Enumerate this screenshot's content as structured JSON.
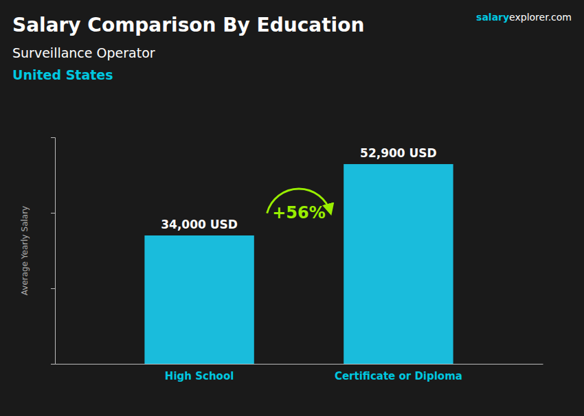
{
  "chart_data": {
    "type": "bar",
    "title": "Salary Comparison By Education",
    "subtitle": "Surveillance Operator",
    "y_label": "Average Yearly Salary",
    "categories": [
      "High School",
      "Certificate or Diploma"
    ],
    "values": [
      34000,
      52900
    ],
    "value_labels": [
      "34,000 USD",
      "52,900 USD"
    ],
    "data_labels": true,
    "color": "#1ABCDC",
    "ylim": [
      0,
      60000
    ],
    "yticks": [
      0,
      20000,
      40000,
      60000
    ],
    "tick_labels": "x",
    "grid": false,
    "annotations": [
      {
        "text": "+56%",
        "color": "#99EE00"
      },
      {
        "text": "United States",
        "color": "#00C8E0"
      },
      {
        "text": "salary",
        "color": "#00C8E0"
      },
      {
        "text": "explorer.com",
        "color": "#FFFFFF"
      }
    ]
  }
}
